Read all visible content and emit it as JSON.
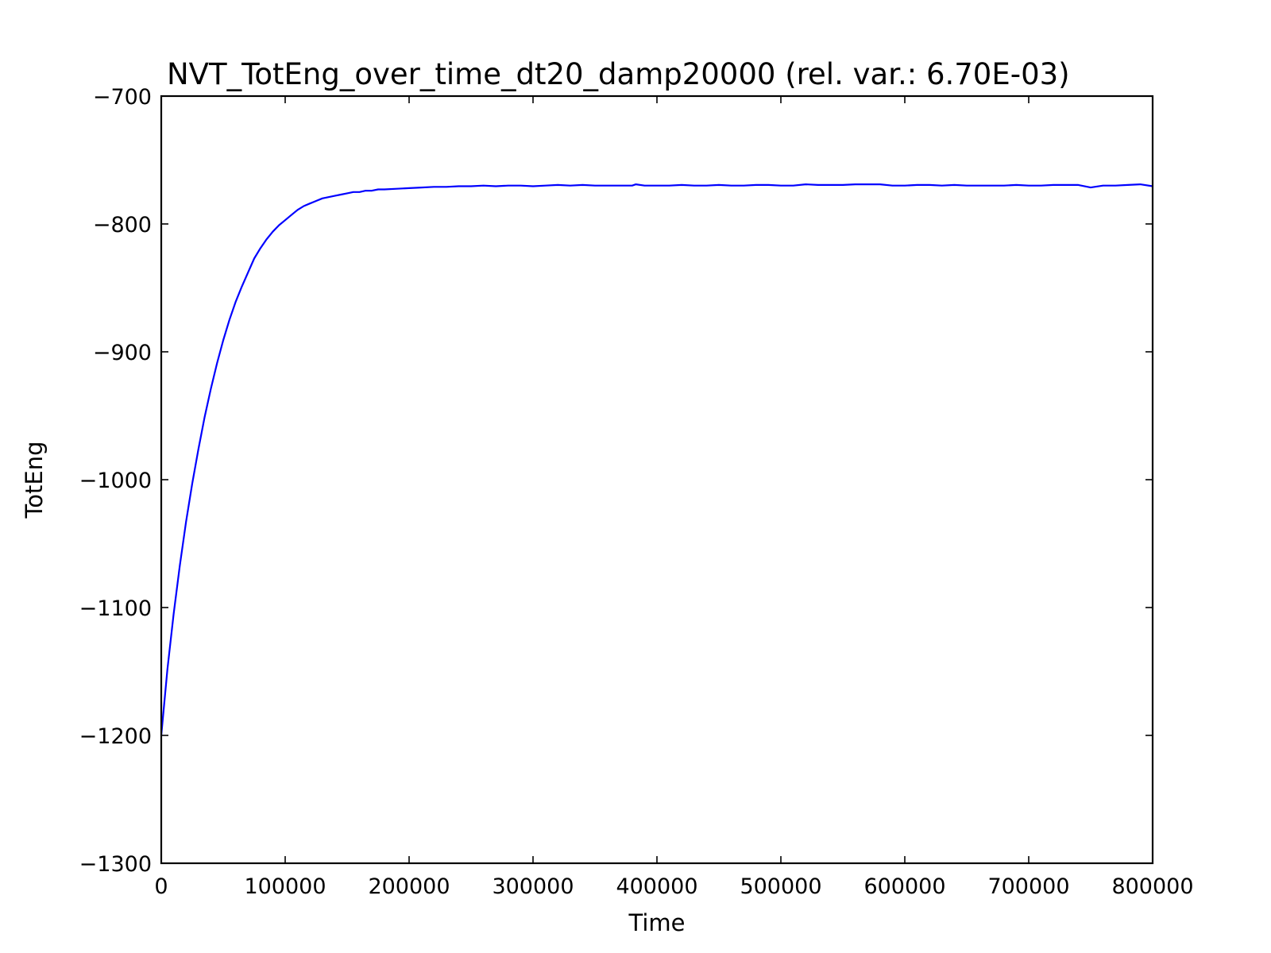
{
  "chart_data": {
    "type": "line",
    "title": "NVT_TotEng_over_time_dt20_damp20000 (rel. var.: 6.70E-03)",
    "xlabel": "Time",
    "ylabel": "TotEng",
    "xlim": [
      0,
      800000
    ],
    "ylim": [
      -1300,
      -700
    ],
    "grid": false,
    "xticks": [
      0,
      100000,
      200000,
      300000,
      400000,
      500000,
      600000,
      700000,
      800000
    ],
    "xtick_labels": [
      "0",
      "100000",
      "200000",
      "300000",
      "400000",
      "500000",
      "600000",
      "700000",
      "800000"
    ],
    "yticks": [
      -1300,
      -1200,
      -1100,
      -1000,
      -900,
      -800,
      -700
    ],
    "ytick_labels": [
      "−1300",
      "−1200",
      "−1100",
      "−1000",
      "−900",
      "−800",
      "−700"
    ],
    "series": [
      {
        "color": "#0000ff",
        "x": [
          0,
          5000,
          10000,
          15000,
          20000,
          25000,
          30000,
          35000,
          40000,
          45000,
          50000,
          55000,
          60000,
          65000,
          70000,
          75000,
          80000,
          85000,
          90000,
          95000,
          100000,
          105000,
          110000,
          115000,
          120000,
          125000,
          130000,
          135000,
          140000,
          145000,
          150000,
          155000,
          160000,
          165000,
          170000,
          175000,
          180000,
          190000,
          200000,
          210000,
          220000,
          230000,
          240000,
          250000,
          260000,
          270000,
          280000,
          290000,
          300000,
          310000,
          320000,
          330000,
          340000,
          350000,
          360000,
          370000,
          380000,
          383000,
          390000,
          400000,
          410000,
          420000,
          430000,
          440000,
          450000,
          460000,
          470000,
          480000,
          490000,
          500000,
          510000,
          520000,
          530000,
          540000,
          550000,
          560000,
          570000,
          580000,
          590000,
          600000,
          610000,
          620000,
          630000,
          640000,
          650000,
          660000,
          670000,
          680000,
          690000,
          700000,
          710000,
          720000,
          730000,
          740000,
          750000,
          760000,
          770000,
          780000,
          790000,
          800000
        ],
        "y": [
          -1200,
          -1148,
          -1105,
          -1067,
          -1033,
          -1003,
          -976,
          -951,
          -929,
          -909,
          -891,
          -875,
          -861,
          -849,
          -838,
          -827,
          -819,
          -812,
          -806,
          -801,
          -797,
          -793,
          -789,
          -786,
          -784,
          -782,
          -780,
          -779,
          -778,
          -777,
          -776,
          -775,
          -775,
          -774,
          -774,
          -773,
          -773,
          -772.5,
          -772,
          -771.5,
          -771,
          -771,
          -770.5,
          -770.5,
          -770,
          -770.5,
          -770,
          -770,
          -770.5,
          -770,
          -769.5,
          -770,
          -769.5,
          -770,
          -770,
          -770,
          -770,
          -769,
          -770,
          -770,
          -770,
          -769.5,
          -770,
          -770,
          -769.5,
          -770,
          -770,
          -769.5,
          -769.5,
          -770,
          -770,
          -769,
          -769.5,
          -769.5,
          -769.5,
          -769,
          -769,
          -769,
          -770,
          -770,
          -769.5,
          -769.5,
          -770,
          -769.5,
          -770,
          -770,
          -770,
          -770,
          -769.5,
          -770,
          -770,
          -769.5,
          -769.5,
          -769.5,
          -771.5,
          -770,
          -770,
          -769.5,
          -769,
          -770.5
        ]
      }
    ]
  }
}
